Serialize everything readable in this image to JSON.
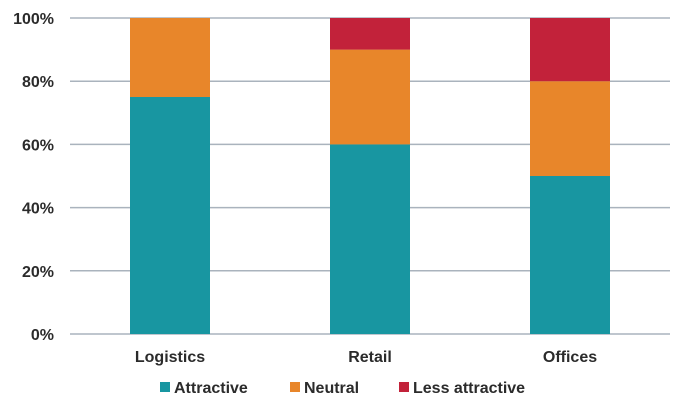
{
  "chart_data": {
    "type": "bar",
    "stacked": true,
    "title": "",
    "xlabel": "",
    "ylabel": "",
    "categories": [
      "Logistics",
      "Retail",
      "Offices"
    ],
    "series": [
      {
        "name": "Attractive",
        "values": [
          75,
          60,
          50
        ],
        "color": "#1896a1"
      },
      {
        "name": "Neutral",
        "values": [
          25,
          30,
          30
        ],
        "color": "#e8862a"
      },
      {
        "name": "Less attractive",
        "values": [
          0,
          10,
          20
        ],
        "color": "#c2223a"
      }
    ],
    "ylim": [
      0,
      100
    ],
    "yticks": [
      0,
      20,
      40,
      60,
      80,
      100
    ],
    "ytick_labels": [
      "0%",
      "20%",
      "40%",
      "60%",
      "80%",
      "100%"
    ],
    "grid": true,
    "legend_position": "bottom",
    "gridline_color": "#aab3bd"
  }
}
